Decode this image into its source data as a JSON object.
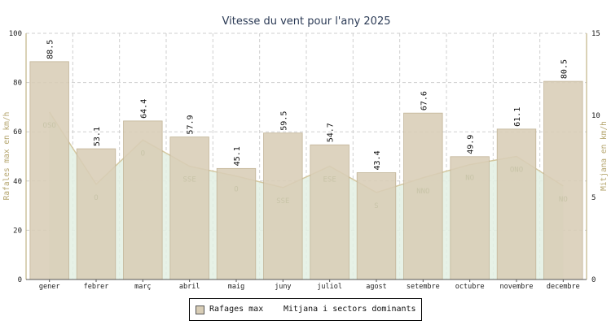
{
  "chart_data": {
    "type": "bar",
    "title": "Vitesse du vent pour l'any 2025",
    "ylabel": "Rafales max en km/h",
    "y2label": "Mitjana en km/h",
    "ylim": [
      0,
      100
    ],
    "y2lim": [
      0,
      15
    ],
    "yticks": [
      "0",
      "20",
      "40",
      "60",
      "80",
      "100"
    ],
    "y2ticks": [
      "0",
      "5",
      "10",
      "15"
    ],
    "grid": true,
    "categories": [
      "gener",
      "febrer",
      "març",
      "abril",
      "maig",
      "juny",
      "juliol",
      "agost",
      "setembre",
      "octubre",
      "novembre",
      "decembre"
    ],
    "series": [
      {
        "name": "Rafages max",
        "type": "bar",
        "color": "#d8cdb6",
        "values": [
          88.5,
          53.1,
          64.4,
          57.9,
          45.1,
          59.5,
          54.7,
          43.4,
          67.6,
          49.9,
          61.1,
          80.5
        ],
        "labels": [
          "88.5",
          "53.1",
          "64.4",
          "57.9",
          "45.1",
          "59.5",
          "54.7",
          "43.4",
          "67.6",
          "49.9",
          "61.1",
          "80.5"
        ]
      },
      {
        "name": "Mitjana i sectors dominants",
        "type": "area",
        "axis": "right",
        "color": "#e3f0e3",
        "values": [
          10.2,
          5.8,
          8.5,
          6.9,
          6.3,
          5.6,
          6.9,
          5.3,
          6.2,
          7.0,
          7.5,
          5.7
        ],
        "sectors": [
          "OSO",
          "O",
          "O",
          "SSE",
          "O",
          "SSE",
          "ESE",
          "S",
          "NNO",
          "NO",
          "ONO",
          "NO"
        ]
      }
    ]
  },
  "legend": {
    "items": [
      {
        "label": "Rafages max",
        "swatch_color": "#d8cdb6"
      },
      {
        "label": "Mitjana i sectors dominants"
      }
    ]
  },
  "colors": {
    "bar_fill": "#d8cdb6",
    "bar_stroke": "#c2b497",
    "area_fill": "#e3f0e3",
    "area_stroke": "#d4c8a0",
    "axis_title": "#b5a56e",
    "grid": "#cfcfcf"
  }
}
